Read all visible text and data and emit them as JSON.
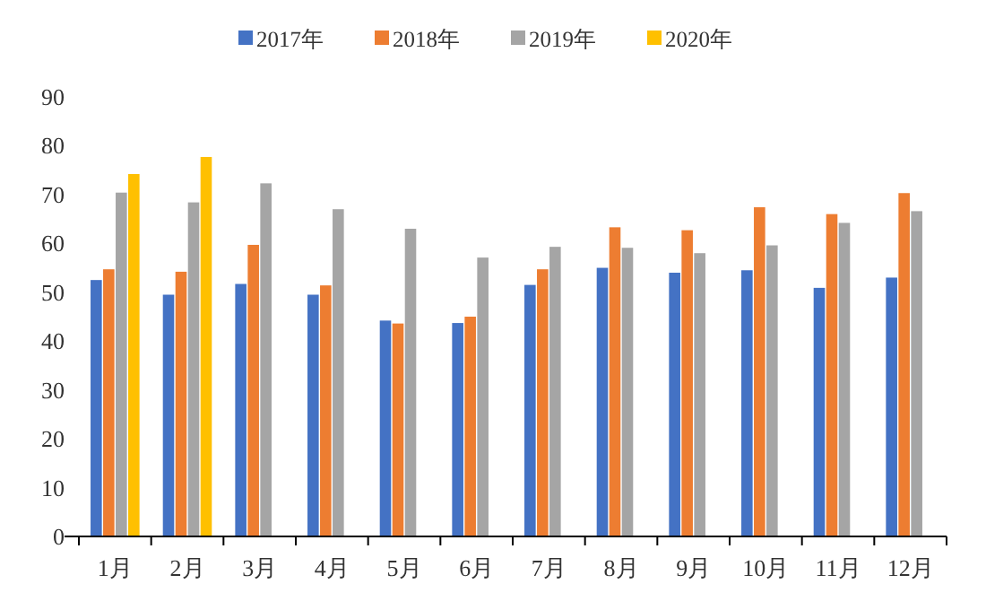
{
  "chart_data": {
    "type": "bar",
    "categories": [
      "1月",
      "2月",
      "3月",
      "4月",
      "5月",
      "6月",
      "7月",
      "8月",
      "9月",
      "10月",
      "11月",
      "12月"
    ],
    "series": [
      {
        "name": "2017年",
        "color": "#4472c4",
        "values": [
          52.5,
          49.5,
          51.7,
          49.5,
          44.2,
          43.7,
          51.5,
          55,
          54,
          54.5,
          50.9,
          53
        ]
      },
      {
        "name": "2018年",
        "color": "#ed7d31",
        "values": [
          54.7,
          54.2,
          59.7,
          51.4,
          43.6,
          45,
          54.7,
          63.3,
          62.7,
          67.4,
          66,
          70.3
        ]
      },
      {
        "name": "2019年",
        "color": "#a5a5a5",
        "values": [
          70.4,
          68.4,
          72.3,
          67,
          63,
          57.1,
          59.3,
          59.1,
          58,
          59.6,
          64.2,
          66.6
        ]
      },
      {
        "name": "2020年",
        "color": "#ffc000",
        "values": [
          74.2,
          77.7,
          null,
          null,
          null,
          null,
          null,
          null,
          null,
          null,
          null,
          null
        ]
      }
    ],
    "ylim": [
      0,
      90
    ],
    "yticks": [
      0,
      10,
      20,
      30,
      40,
      50,
      60,
      70,
      80,
      90
    ],
    "legend": "top"
  }
}
